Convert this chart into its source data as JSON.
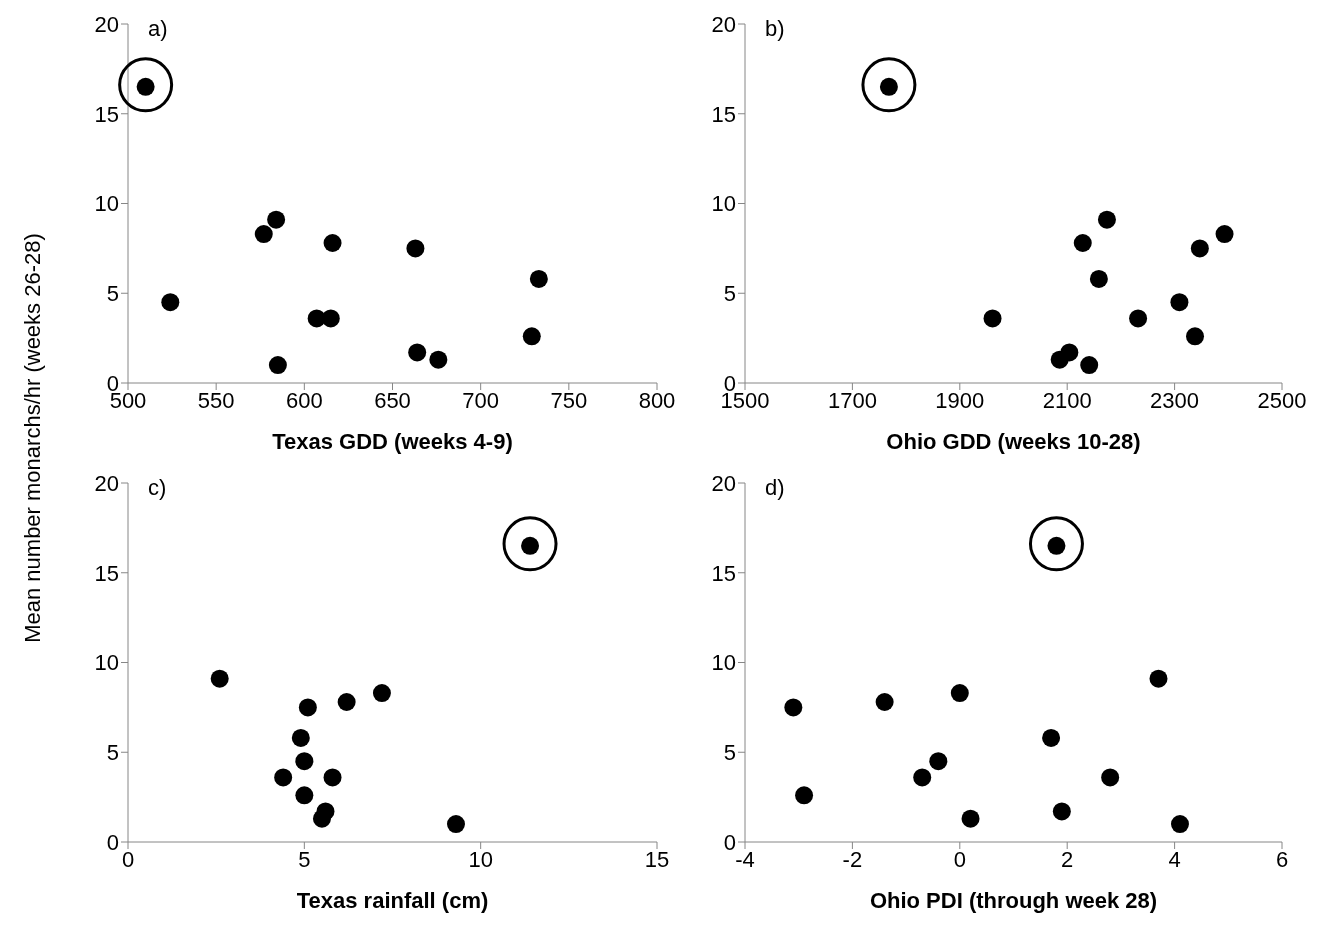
{
  "chart_data": [
    {
      "type": "scatter",
      "title": "a)",
      "xlabel": "Texas GDD (weeks 4-9)",
      "ylabel": "Mean number monarchs/hr (weeks 26-28)",
      "marker": "circle",
      "xlim": [
        500,
        800
      ],
      "xticks": [
        500,
        550,
        600,
        650,
        700,
        750,
        800
      ],
      "ylim": [
        0,
        20
      ],
      "yticks": [
        0,
        5,
        10,
        15,
        20
      ],
      "series": [
        {
          "color": "#000000",
          "x": [
            510,
            524,
            577,
            584,
            585,
            607,
            615,
            616,
            663,
            664,
            676,
            729,
            733
          ],
          "values": [
            16.5,
            4.5,
            8.3,
            9.1,
            1.0,
            3.6,
            3.6,
            7.8,
            7.5,
            1.7,
            1.3,
            2.6,
            5.8
          ]
        }
      ]
    },
    {
      "type": "scatter",
      "title": "b)",
      "xlabel": "Ohio GDD (weeks 10-28)",
      "marker": "circle",
      "xlim": [
        1500,
        2500
      ],
      "xticks": [
        1500,
        1700,
        1900,
        2100,
        2300,
        2500
      ],
      "ylim": [
        0,
        20
      ],
      "yticks": [
        0,
        5,
        10,
        15,
        20
      ],
      "series": [
        {
          "color": "#000000",
          "x": [
            1768,
            1961,
            2086,
            2104,
            2129,
            2141,
            2159,
            2174,
            2232,
            2309,
            2338,
            2347,
            2393
          ],
          "values": [
            16.5,
            3.6,
            1.3,
            1.7,
            7.8,
            1.0,
            5.8,
            9.1,
            3.6,
            4.5,
            2.6,
            7.5,
            8.3
          ]
        }
      ]
    },
    {
      "type": "scatter",
      "title": "c)",
      "xlabel": "Texas rainfall (cm)",
      "marker": "circle",
      "xlim": [
        0,
        15
      ],
      "xticks": [
        0,
        5,
        10,
        15
      ],
      "ylim": [
        0,
        20
      ],
      "yticks": [
        0,
        5,
        10,
        15,
        20
      ],
      "series": [
        {
          "color": "#000000",
          "x": [
            11.4,
            2.6,
            5.1,
            6.2,
            7.2,
            4.9,
            5.0,
            4.4,
            5.8,
            5.0,
            5.6,
            5.5,
            9.3
          ],
          "values": [
            16.5,
            9.1,
            7.5,
            7.8,
            8.3,
            5.8,
            4.5,
            3.6,
            3.6,
            2.6,
            1.7,
            1.3,
            1.0
          ]
        }
      ]
    },
    {
      "type": "scatter",
      "title": "d)",
      "xlabel": "Ohio PDI (through week 28)",
      "marker": "circle",
      "xlim": [
        -4,
        6
      ],
      "xticks": [
        -4,
        -2,
        0,
        2,
        4,
        6
      ],
      "ylim": [
        0,
        20
      ],
      "yticks": [
        0,
        5,
        10,
        15,
        20
      ],
      "series": [
        {
          "color": "#000000",
          "x": [
            1.8,
            -3.1,
            -2.9,
            -1.4,
            -0.7,
            -0.4,
            0.0,
            0.2,
            1.7,
            1.9,
            2.8,
            3.7,
            4.1
          ],
          "values": [
            16.5,
            7.5,
            2.6,
            7.8,
            3.6,
            4.5,
            8.3,
            1.3,
            5.8,
            1.7,
            3.6,
            9.1,
            1.0
          ]
        }
      ]
    }
  ]
}
